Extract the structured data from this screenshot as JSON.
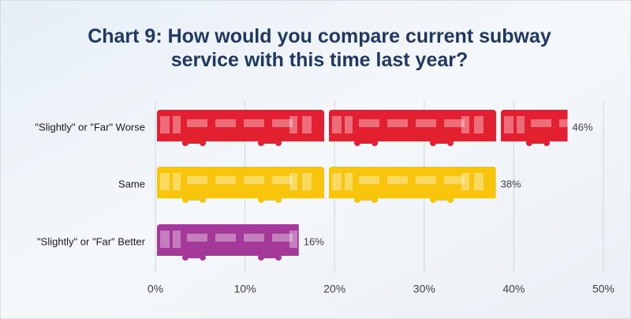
{
  "chart_data": {
    "type": "bar",
    "orientation": "horizontal",
    "title": "Chart 9: How would you compare current subway service with this time last year?",
    "categories": [
      "\"Slightly\" or \"Far\" Worse",
      "Same",
      "\"Slightly\" or \"Far\" Better"
    ],
    "values": [
      46,
      38,
      16
    ],
    "value_labels": [
      "46%",
      "38%",
      "16%"
    ],
    "colors": [
      "#e3202f",
      "#f8c50c",
      "#a5399a"
    ],
    "xlim": [
      0,
      50
    ],
    "xticks": [
      {
        "value": 0,
        "label": "0%"
      },
      {
        "value": 10,
        "label": "10%"
      },
      {
        "value": 20,
        "label": "20%"
      },
      {
        "value": 30,
        "label": "30%"
      },
      {
        "value": 40,
        "label": "40%"
      },
      {
        "value": 50,
        "label": "50%"
      }
    ],
    "grid": true
  }
}
